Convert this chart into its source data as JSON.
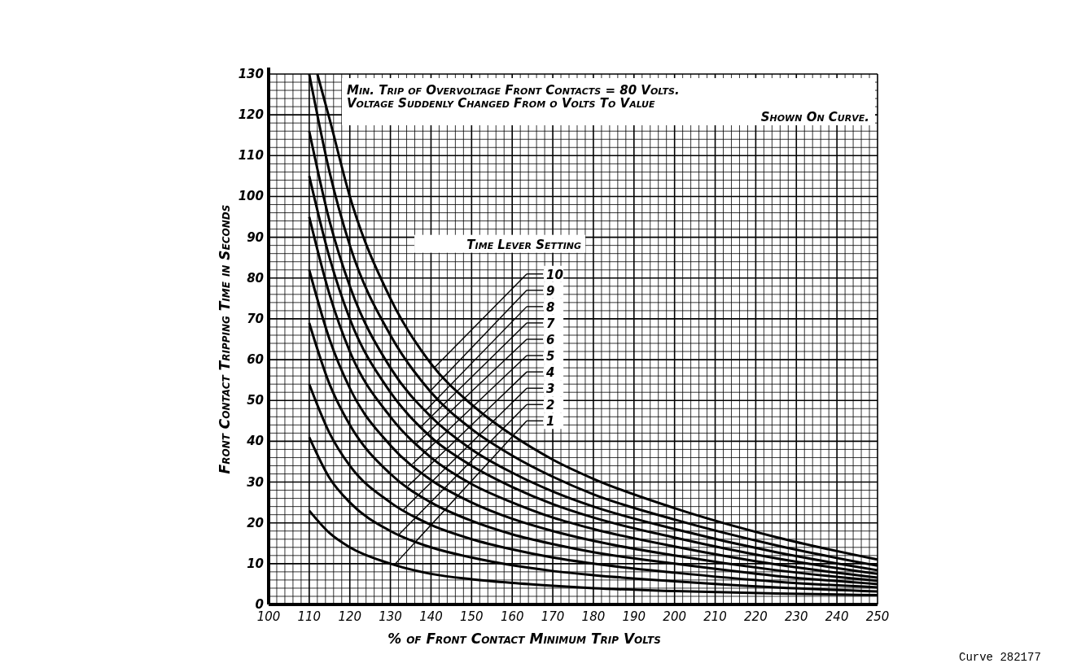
{
  "chart_data": {
    "type": "line",
    "xlabel": "% of Front Contact Minimum Trip Volts",
    "ylabel": "Front Contact Tripping Time in Seconds",
    "legend_title": "Time Lever Setting",
    "xlim": [
      100,
      250
    ],
    "ylim": [
      0,
      130
    ],
    "xticks": [
      100,
      110,
      120,
      130,
      140,
      150,
      160,
      170,
      180,
      190,
      200,
      210,
      220,
      230,
      240,
      250
    ],
    "yticks": [
      0,
      10,
      20,
      30,
      40,
      50,
      60,
      70,
      80,
      90,
      100,
      110,
      120,
      130
    ],
    "grid": true,
    "legend": "right",
    "marker": "none",
    "line_style": "solid",
    "x": [
      110,
      115,
      120,
      130,
      140,
      150,
      160,
      170,
      180,
      200,
      225,
      250
    ],
    "series": [
      {
        "name": "1",
        "color": "#000000",
        "values": [
          23,
          17.5,
          14,
          10,
          7.5,
          6.2,
          5.3,
          4.6,
          4,
          3.3,
          2.7,
          2.3
        ]
      },
      {
        "name": "2",
        "color": "#000000",
        "values": [
          41,
          31,
          25,
          18,
          14,
          11.5,
          9.6,
          8.2,
          7.2,
          5.7,
          4.2,
          3.2
        ]
      },
      {
        "name": "3",
        "color": "#000000",
        "values": [
          54,
          42,
          34,
          25,
          19.5,
          16,
          13.5,
          11.5,
          10,
          7.8,
          5.6,
          4.2
        ]
      },
      {
        "name": "4",
        "color": "#000000",
        "values": [
          69,
          54,
          44,
          32,
          25,
          20.5,
          17.2,
          14.8,
          12.8,
          10,
          7,
          5
        ]
      },
      {
        "name": "5",
        "color": "#000000",
        "values": [
          82,
          65,
          53,
          39,
          30.5,
          25,
          21,
          18,
          15.6,
          12,
          8.4,
          5.8
        ]
      },
      {
        "name": "6",
        "color": "#000000",
        "values": [
          95,
          76,
          62,
          46,
          36,
          29.5,
          25,
          21.3,
          18.5,
          14.2,
          9.8,
          6.6
        ]
      },
      {
        "name": "7",
        "color": "#000000",
        "values": [
          105,
          85,
          70,
          52,
          41,
          34,
          28.8,
          24.6,
          21.3,
          16.4,
          11.3,
          7.5
        ]
      },
      {
        "name": "8",
        "color": "#000000",
        "values": [
          116,
          94,
          78,
          58,
          46,
          38,
          32.3,
          27.7,
          24,
          18.5,
          12.8,
          8.4
        ]
      },
      {
        "name": "9",
        "color": "#000000",
        "values": [
          130,
          106,
          88,
          66,
          52,
          43,
          36.5,
          31.3,
          27,
          20.8,
          14.5,
          9.5
        ]
      },
      {
        "name": "10",
        "color": "#000000",
        "x": [
          112,
          115,
          120,
          130,
          140,
          150,
          160,
          170,
          180,
          200,
          225,
          250
        ],
        "values": [
          130,
          119,
          100,
          75,
          59,
          49,
          41.5,
          35.5,
          30.8,
          23.6,
          16.5,
          11
        ]
      }
    ],
    "annotations": [
      "Min. Trip of Overvoltage Front Contacts = 80 Volts.",
      "Voltage Suddenly Changed From o Volts To Value",
      "Shown On Curve.",
      "Curve 282177"
    ]
  }
}
